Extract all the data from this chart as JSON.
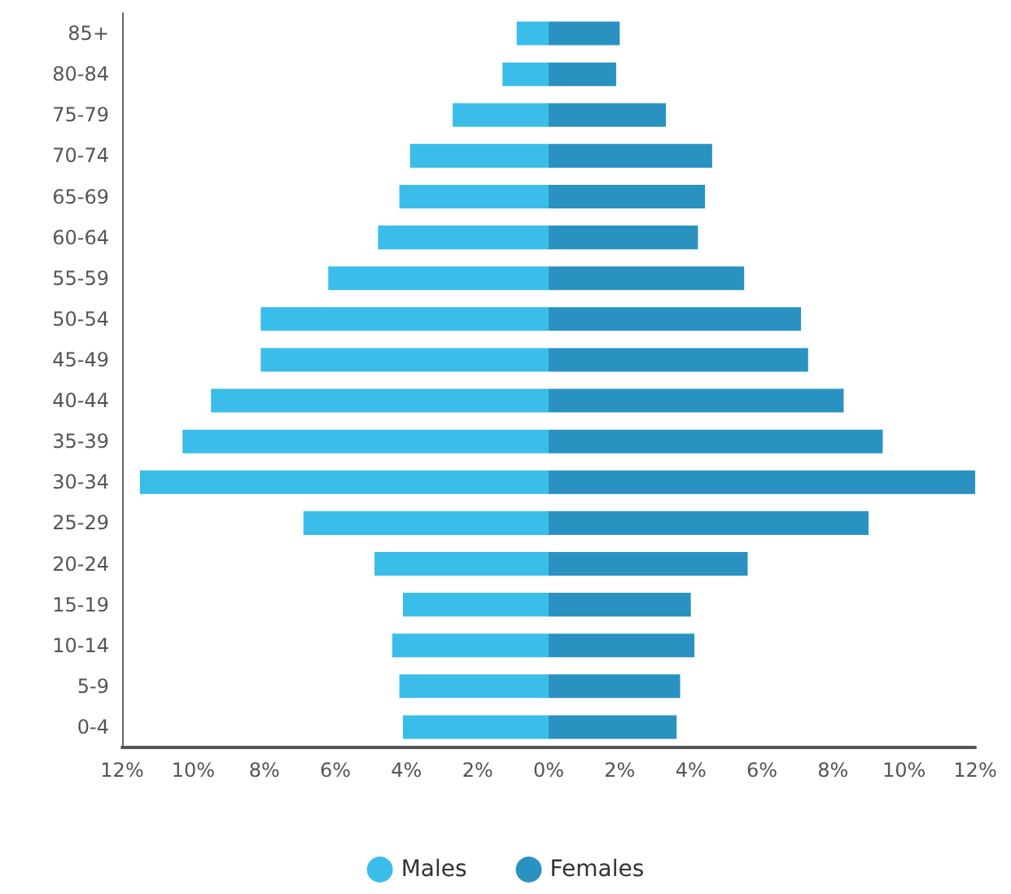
{
  "chart_data": {
    "type": "bar",
    "orientation": "horizontal",
    "stacked": true,
    "categories": [
      "85+",
      "80-84",
      "75-79",
      "70-74",
      "65-69",
      "60-64",
      "55-59",
      "50-54",
      "45-49",
      "40-44",
      "35-39",
      "30-34",
      "25-29",
      "20-24",
      "15-19",
      "10-14",
      "5-9",
      "0-4"
    ],
    "series": [
      {
        "name": "Males",
        "color": "#3bbde9",
        "values": [
          -0.9,
          -1.3,
          -2.7,
          -3.9,
          -4.2,
          -4.8,
          -6.2,
          -8.1,
          -8.1,
          -9.5,
          -10.3,
          -11.5,
          -6.9,
          -4.9,
          -4.1,
          -4.4,
          -4.2,
          -4.1
        ]
      },
      {
        "name": "Females",
        "color": "#2a92c1",
        "values": [
          2.0,
          1.9,
          3.3,
          4.6,
          4.4,
          4.2,
          5.5,
          7.1,
          7.3,
          8.3,
          9.4,
          12.0,
          9.0,
          5.6,
          4.0,
          4.1,
          3.7,
          3.6
        ]
      }
    ],
    "xlim": [
      -12,
      12
    ],
    "xticks": [
      {
        "value": -12,
        "label": "12%"
      },
      {
        "value": -10,
        "label": "10%"
      },
      {
        "value": -8,
        "label": "8%"
      },
      {
        "value": -6,
        "label": "6%"
      },
      {
        "value": -4,
        "label": "4%"
      },
      {
        "value": -2,
        "label": "2%"
      },
      {
        "value": 0,
        "label": "0%"
      },
      {
        "value": 2,
        "label": "2%"
      },
      {
        "value": 4,
        "label": "4%"
      },
      {
        "value": 6,
        "label": "6%"
      },
      {
        "value": 8,
        "label": "8%"
      },
      {
        "value": 10,
        "label": "10%"
      },
      {
        "value": 12,
        "label": "12%"
      }
    ],
    "grid": false,
    "legend": "bottom"
  }
}
